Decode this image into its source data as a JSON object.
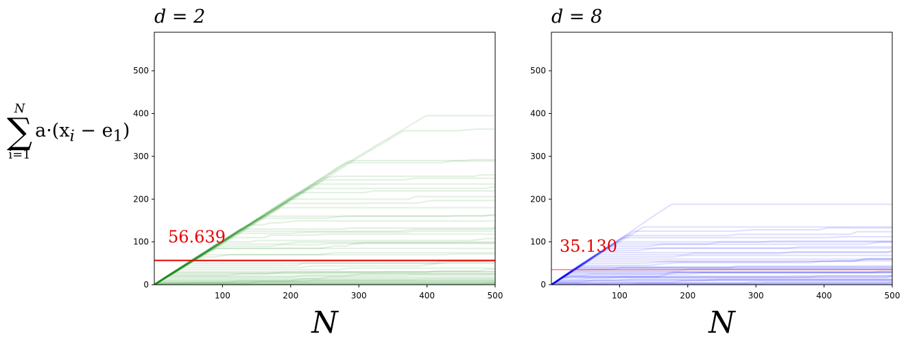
{
  "y_axis_label": {
    "sum_upper": "N",
    "sum_lower": "i=1",
    "sigma": "∑",
    "expression": "a·(x",
    "sub_i": "i",
    "minus": " − e",
    "sub_1": "1",
    "close": ")"
  },
  "colors": {
    "left_series": "#1a8a1a",
    "right_series": "#0000ff",
    "mean_line": "#e60000"
  },
  "chart_data": [
    {
      "type": "line",
      "title": "d = 2",
      "xlabel": "N",
      "ylabel": "",
      "xlim": [
        0,
        500
      ],
      "ylim": [
        0,
        590
      ],
      "xticks": [
        100,
        200,
        300,
        400,
        500
      ],
      "yticks": [
        0,
        100,
        200,
        300,
        400,
        500
      ],
      "mean_value": 56.639,
      "annotation": "56.639",
      "line_alpha": 0.12,
      "series_plateaus": [
        395,
        360,
        290,
        285,
        250,
        245,
        235,
        225,
        215,
        200,
        190,
        180,
        160,
        155,
        140,
        130,
        125,
        120,
        110,
        100,
        95,
        90,
        85,
        80,
        70,
        65,
        55,
        50,
        45,
        40,
        35,
        30,
        28,
        25,
        22,
        20,
        18,
        15,
        12,
        10,
        8,
        6,
        5,
        4,
        3,
        2,
        2,
        1,
        1,
        0
      ],
      "series_note_slope": 1.0
    },
    {
      "type": "line",
      "title": "d = 8",
      "xlabel": "N",
      "ylabel": "",
      "xlim": [
        0,
        500
      ],
      "ylim": [
        0,
        590
      ],
      "xticks": [
        100,
        200,
        300,
        400,
        500
      ],
      "yticks": [
        0,
        100,
        200,
        300,
        400,
        500
      ],
      "mean_value": 35.13,
      "annotation": "35.130",
      "line_alpha": 0.12,
      "series_plateaus": [
        188,
        135,
        125,
        115,
        110,
        100,
        95,
        90,
        85,
        80,
        75,
        70,
        65,
        60,
        55,
        50,
        45,
        42,
        40,
        38,
        35,
        32,
        30,
        28,
        25,
        22,
        20,
        18,
        16,
        15,
        12,
        10,
        8,
        6,
        5,
        4,
        3,
        2,
        1,
        0
      ],
      "series_note_slope": 1.05
    }
  ]
}
